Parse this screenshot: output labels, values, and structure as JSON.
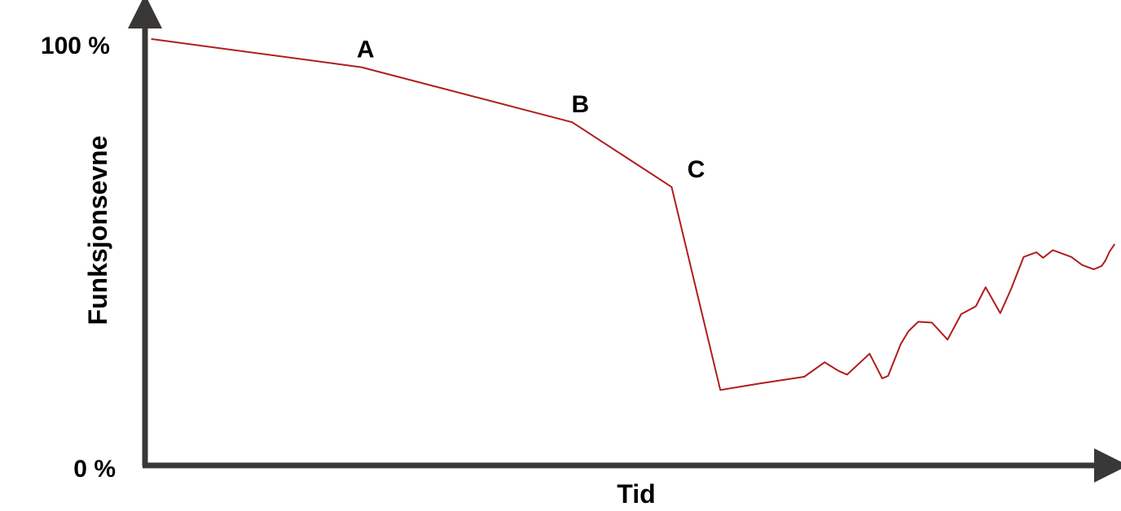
{
  "chart_data": {
    "type": "line",
    "title": "",
    "xlabel": "Tid",
    "ylabel": "Funksjonsevne",
    "ylim": [
      0,
      100
    ],
    "xlim": [
      0,
      100
    ],
    "yticks": [
      {
        "value": 100,
        "label": "100 %"
      },
      {
        "value": 0,
        "label": "0 %"
      }
    ],
    "grid": false,
    "legend": "none",
    "colors": {
      "axis": "#3a3836",
      "line": "#b01d1d",
      "text": "#000000"
    },
    "series": [
      {
        "x": [
          0.7,
          22.2,
          43.8,
          54.0,
          59.0,
          63.0,
          67.6,
          69.7,
          71.1,
          72.0,
          74.3,
          75.6,
          76.2,
          77.5,
          78.3,
          79.3,
          80.7,
          82.3,
          83.7,
          85.2,
          86.2,
          87.7,
          88.8,
          90.1,
          91.4,
          92.1,
          93.1,
          95.0,
          96.1,
          97.3,
          98.1,
          98.5,
          98.9,
          99.4
        ],
        "y": [
          100.0,
          93.4,
          80.5,
          65.3,
          17.7,
          19.2,
          20.8,
          24.2,
          22.2,
          21.3,
          26.2,
          20.4,
          21.0,
          28.5,
          31.5,
          33.7,
          33.5,
          29.5,
          35.5,
          37.3,
          41.8,
          35.7,
          41.3,
          48.9,
          50.0,
          48.7,
          50.5,
          48.9,
          47.0,
          46.0,
          46.8,
          48.1,
          50.1,
          51.8
        ]
      }
    ],
    "annotations": [
      {
        "text": "A",
        "x": 22.2,
        "y": 93.4
      },
      {
        "text": "B",
        "x": 43.8,
        "y": 80.5
      },
      {
        "text": "C",
        "x": 54.0,
        "y": 65.3
      }
    ]
  }
}
